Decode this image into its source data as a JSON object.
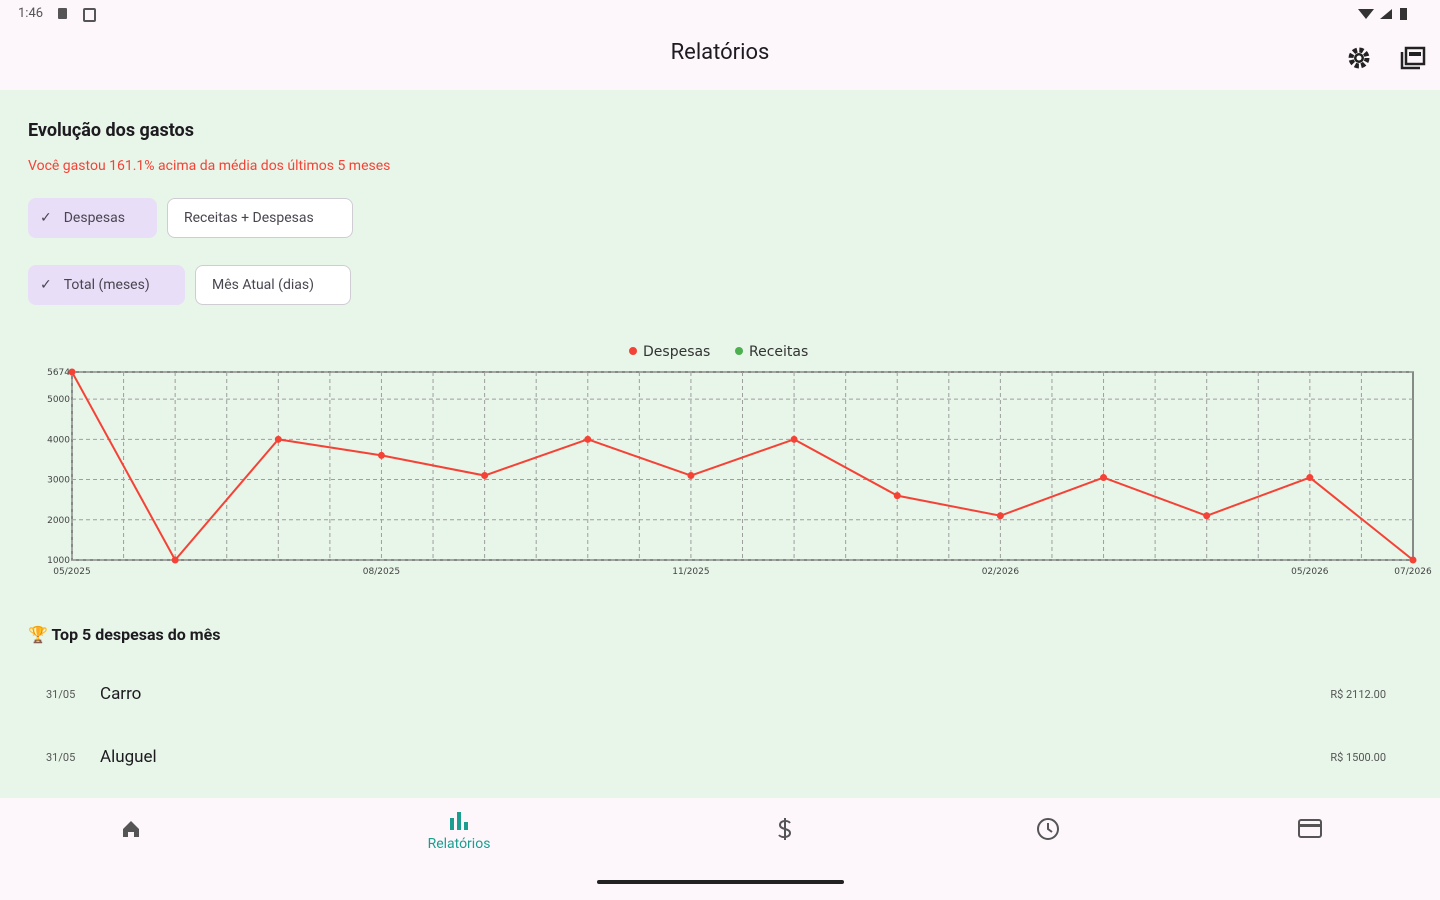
{
  "status_bar": {
    "time": "1:46"
  },
  "app_bar": {
    "title": "Relatórios"
  },
  "section": {
    "title": "Evolução dos gastos",
    "subtitle": "Você gastou 161.1% acima da média dos últimos 5 meses"
  },
  "chips": {
    "row1": [
      "Despesas",
      "Receitas + Despesas"
    ],
    "row2": [
      "Total (meses)",
      "Mês Atual (dias)"
    ]
  },
  "chart_data": {
    "type": "line",
    "categories": [
      "05/2025",
      null,
      null,
      "08/2025",
      null,
      null,
      "11/2025",
      null,
      null,
      "02/2026",
      null,
      null,
      "05/2026",
      "07/2026"
    ],
    "series": [
      {
        "name": "Despesas",
        "color": "#f44336",
        "values": [
          5674,
          1000,
          4000,
          3600,
          3100,
          4000,
          3100,
          4000,
          2600,
          2100,
          3050,
          2100,
          3050,
          1000
        ]
      },
      {
        "name": "Receitas",
        "color": "#4caf50",
        "values": [
          null,
          null,
          null,
          null,
          null,
          null,
          null,
          null,
          null,
          null,
          null,
          null,
          null,
          null
        ]
      }
    ],
    "ylim": [
      1000,
      5674
    ],
    "yticks": [
      1000,
      2000,
      3000,
      4000,
      5000,
      5674
    ],
    "grid": true,
    "legend": "top"
  },
  "top5": {
    "title": "Top 5 despesas do mês",
    "items": [
      {
        "date": "31/05",
        "name": "Carro",
        "amount": "R$ 2112.00"
      },
      {
        "date": "31/05",
        "name": "Aluguel",
        "amount": "R$ 1500.00"
      }
    ]
  },
  "nav": {
    "active": "Relatórios"
  }
}
